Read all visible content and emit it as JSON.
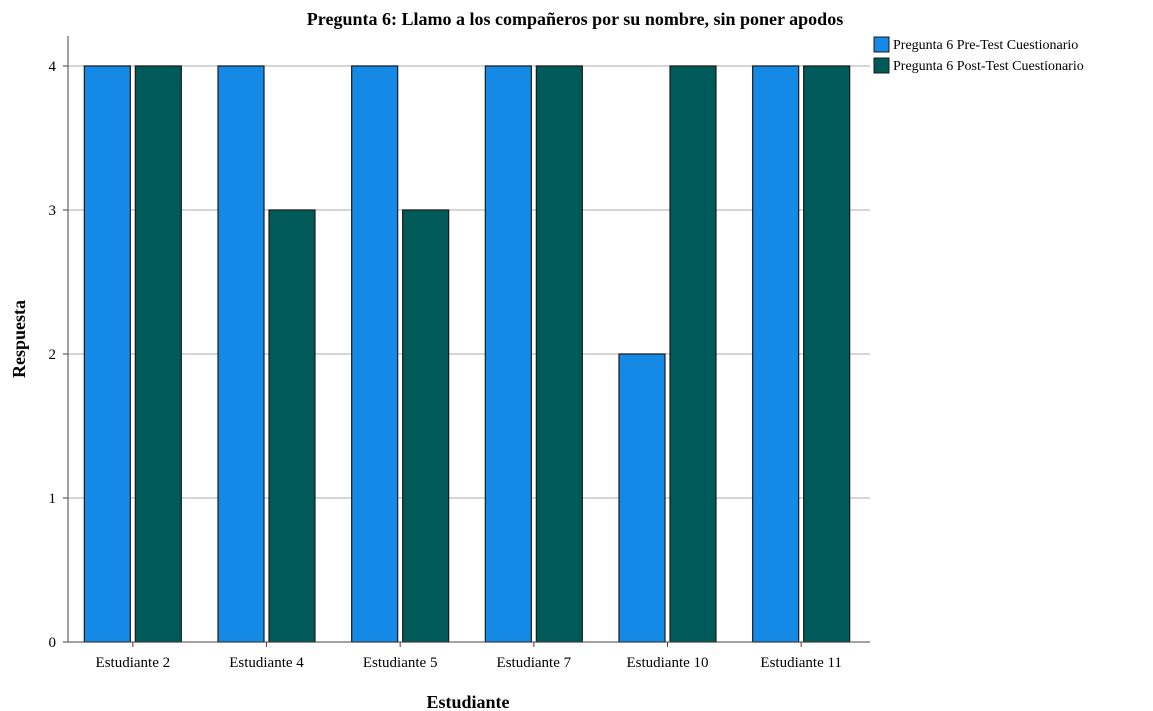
{
  "chart_data": {
    "type": "bar",
    "title": "Pregunta 6: Llamo a los compañeros por su nombre, sin poner apodos",
    "xlabel": "Estudiante",
    "ylabel": "Respuesta",
    "categories": [
      "Estudiante 2",
      "Estudiante 4",
      "Estudiante 5",
      "Estudiante 7",
      "Estudiante 10",
      "Estudiante 11"
    ],
    "series": [
      {
        "name": "Pregunta 6 Pre-Test Cuestionario",
        "color": "#1589E6",
        "values": [
          4,
          4,
          4,
          4,
          2,
          4
        ]
      },
      {
        "name": "Pregunta 6 Post-Test Cuestionario",
        "color": "#005A5A",
        "values": [
          4,
          3,
          3,
          4,
          4,
          4
        ]
      }
    ],
    "ylim": [
      0,
      4
    ],
    "yticks": [
      0,
      1,
      2,
      3,
      4
    ],
    "grid": true,
    "legend_position": "top-right"
  }
}
